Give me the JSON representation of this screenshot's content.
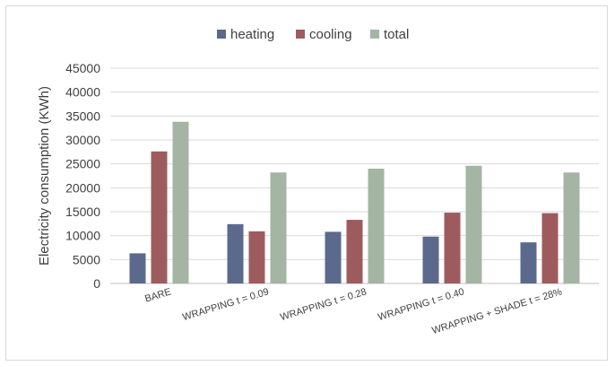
{
  "chart_data": {
    "type": "bar",
    "title": "",
    "xlabel": "",
    "ylabel": "Electricity consumption (KWh)",
    "ylim": [
      0,
      45000
    ],
    "yticks": [
      0,
      5000,
      10000,
      15000,
      20000,
      25000,
      30000,
      35000,
      40000,
      45000
    ],
    "grid": true,
    "legend_position": "top",
    "categories": [
      "BARE",
      "WRAPPING t = 0.09",
      "WRAPPING t = 0.28",
      "WRAPPING t = 0.40",
      "WRAPPING + SHADE t = 28%"
    ],
    "series": [
      {
        "name": "heating",
        "color": "#5b6a8c",
        "values": [
          6300,
          12400,
          10800,
          9800,
          8600
        ]
      },
      {
        "name": "cooling",
        "color": "#9e5b5d",
        "values": [
          27600,
          10900,
          13300,
          14800,
          14700
        ]
      },
      {
        "name": "total",
        "color": "#a4b5a3",
        "values": [
          33800,
          23200,
          24000,
          24600,
          23200
        ]
      }
    ]
  }
}
